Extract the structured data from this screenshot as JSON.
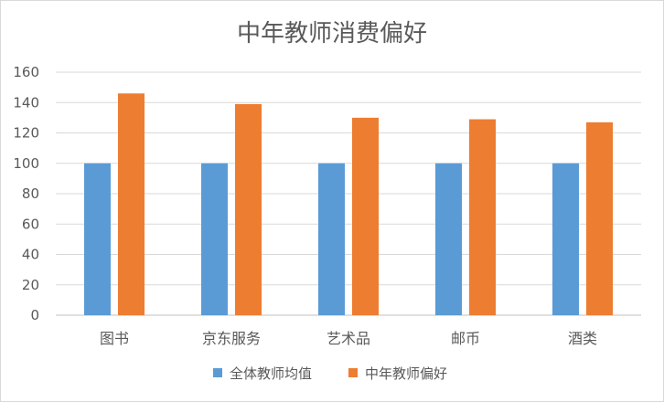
{
  "chart_data": {
    "type": "bar",
    "title": "中年教师消费偏好",
    "categories": [
      "图书",
      "京东服务",
      "艺术品",
      "邮币",
      "酒类"
    ],
    "series": [
      {
        "name": "全体教师均值",
        "values": [
          100,
          100,
          100,
          100,
          100
        ],
        "color": "#5b9bd5"
      },
      {
        "name": "中年教师偏好",
        "values": [
          146,
          139,
          130,
          129,
          127
        ],
        "color": "#ed7d31"
      }
    ],
    "ylim": [
      0,
      160
    ],
    "yticks": [
      "0",
      "20",
      "40",
      "60",
      "80",
      "100",
      "120",
      "140",
      "160"
    ],
    "grid": true,
    "legend_position": "bottom"
  }
}
